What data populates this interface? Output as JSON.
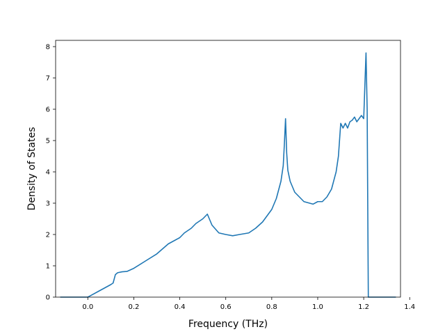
{
  "chart_data": {
    "type": "line",
    "title": "",
    "xlabel": "Frequency (THz)",
    "ylabel": "Density of States",
    "xlim": [
      -0.14,
      1.36
    ],
    "ylim": [
      0,
      8.2
    ],
    "grid": false,
    "x_ticks": [
      "0.0",
      "0.2",
      "0.4",
      "0.6",
      "0.8",
      "1.0",
      "1.2",
      "1.4"
    ],
    "x_tick_values": [
      0.0,
      0.2,
      0.4,
      0.6,
      0.8,
      1.0,
      1.2,
      1.4
    ],
    "y_ticks": [
      "0",
      "1",
      "2",
      "3",
      "4",
      "5",
      "6",
      "7",
      "8"
    ],
    "y_tick_values": [
      0,
      1,
      2,
      3,
      4,
      5,
      6,
      7,
      8
    ],
    "series": [
      {
        "color": "#1f77b4",
        "points": [
          [
            -0.12,
            0.0
          ],
          [
            0.0,
            0.0
          ],
          [
            0.05,
            0.2
          ],
          [
            0.1,
            0.4
          ],
          [
            0.11,
            0.45
          ],
          [
            0.12,
            0.72
          ],
          [
            0.13,
            0.78
          ],
          [
            0.15,
            0.81
          ],
          [
            0.17,
            0.82
          ],
          [
            0.2,
            0.92
          ],
          [
            0.25,
            1.15
          ],
          [
            0.3,
            1.38
          ],
          [
            0.35,
            1.7
          ],
          [
            0.4,
            1.9
          ],
          [
            0.42,
            2.05
          ],
          [
            0.45,
            2.2
          ],
          [
            0.47,
            2.35
          ],
          [
            0.5,
            2.5
          ],
          [
            0.52,
            2.65
          ],
          [
            0.54,
            2.3
          ],
          [
            0.57,
            2.05
          ],
          [
            0.6,
            2.0
          ],
          [
            0.63,
            1.96
          ],
          [
            0.66,
            2.0
          ],
          [
            0.7,
            2.05
          ],
          [
            0.73,
            2.2
          ],
          [
            0.76,
            2.4
          ],
          [
            0.78,
            2.6
          ],
          [
            0.8,
            2.8
          ],
          [
            0.82,
            3.15
          ],
          [
            0.84,
            3.7
          ],
          [
            0.85,
            4.2
          ],
          [
            0.855,
            4.9
          ],
          [
            0.86,
            5.7
          ],
          [
            0.865,
            4.6
          ],
          [
            0.87,
            4.05
          ],
          [
            0.88,
            3.7
          ],
          [
            0.9,
            3.35
          ],
          [
            0.94,
            3.05
          ],
          [
            0.98,
            2.97
          ],
          [
            1.0,
            3.05
          ],
          [
            1.02,
            3.05
          ],
          [
            1.04,
            3.2
          ],
          [
            1.06,
            3.45
          ],
          [
            1.08,
            4.0
          ],
          [
            1.09,
            4.5
          ],
          [
            1.1,
            5.55
          ],
          [
            1.11,
            5.4
          ],
          [
            1.12,
            5.55
          ],
          [
            1.13,
            5.4
          ],
          [
            1.14,
            5.6
          ],
          [
            1.15,
            5.65
          ],
          [
            1.16,
            5.75
          ],
          [
            1.17,
            5.6
          ],
          [
            1.19,
            5.8
          ],
          [
            1.2,
            5.7
          ],
          [
            1.21,
            7.8
          ],
          [
            1.215,
            6.0
          ],
          [
            1.22,
            0.0
          ],
          [
            1.34,
            0.0
          ]
        ]
      }
    ]
  }
}
